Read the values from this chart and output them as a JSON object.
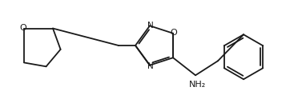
{
  "figsize": [
    3.82,
    1.19
  ],
  "dpi": 100,
  "background_color": "#ffffff",
  "line_color": "#1a1a1a",
  "line_width": 1.3,
  "font_size": 7.5,
  "label_color": "#1a1a1a",
  "xlim": [
    0,
    382
  ],
  "ylim": [
    0,
    119
  ]
}
